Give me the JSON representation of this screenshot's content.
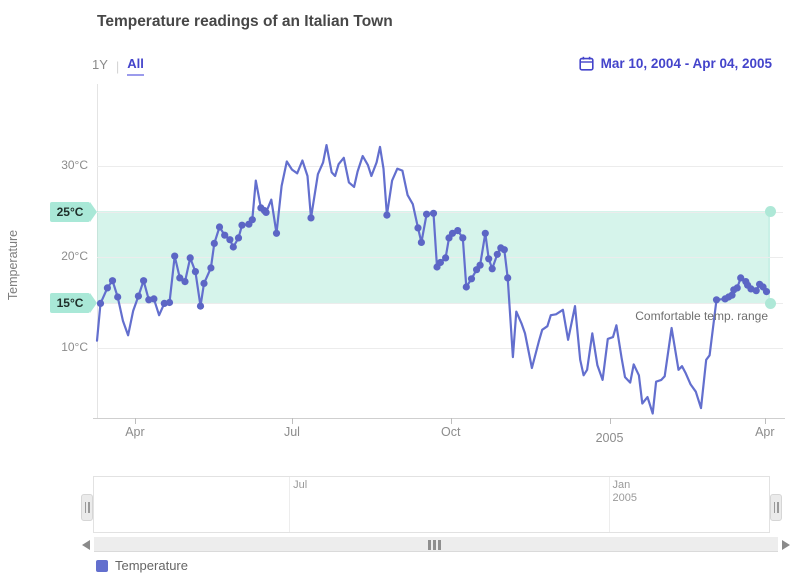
{
  "header": {
    "title": "Temperature readings of an Italian Town",
    "period_selector": {
      "options": [
        "1Y",
        "All"
      ],
      "selected": "All"
    },
    "date_range": "Mar 10, 2004 - Apr 04, 2005"
  },
  "y_axis": {
    "title": "Temperature",
    "ticks": [
      {
        "label": "30°C",
        "value": 30,
        "badge": false
      },
      {
        "label": "25°C",
        "value": 25,
        "badge": true
      },
      {
        "label": "20°C",
        "value": 20,
        "badge": false
      },
      {
        "label": "15°C",
        "value": 15,
        "badge": true
      },
      {
        "label": "10°C",
        "value": 10,
        "badge": false
      }
    ]
  },
  "x_axis": {
    "ticks": [
      {
        "label": "Apr",
        "day": 22,
        "low": false
      },
      {
        "label": "Jul",
        "day": 113,
        "low": false
      },
      {
        "label": "Oct",
        "day": 205,
        "low": false
      },
      {
        "label": "2005",
        "day": 297,
        "low": true
      },
      {
        "label": "Apr",
        "day": 387,
        "low": false
      }
    ]
  },
  "band": {
    "from": 15,
    "to": 25,
    "label": "Comfortable temp. range"
  },
  "navigator": {
    "labels": [
      {
        "label": "Jul",
        "day": 113
      },
      {
        "label": "Jan\n2005",
        "day": 297
      }
    ]
  },
  "legend": {
    "items": [
      {
        "label": "Temperature",
        "color": "#5d66c6"
      }
    ]
  },
  "colors": {
    "accent_line": "#636fce",
    "marker": "#5c66c5",
    "nav_line": "#8d96d8",
    "band_fill": "#9fe5d0",
    "badge_bg": "#a9e8d7",
    "accent_link": "#4444cb",
    "handle_teal": "#aee8d7"
  },
  "chart_data": {
    "type": "line",
    "title": "Temperature readings of an Italian Town",
    "xlabel": "",
    "ylabel": "Temperature",
    "x_start_date": "Mar 10, 2004",
    "x_end_date": "Apr 04, 2005",
    "x_unit": "days since Mar 10, 2004",
    "ylim": [
      2,
      37
    ],
    "x_domain_days": [
      0,
      390
    ],
    "grid": "horizontal",
    "legend_position": "bottom-left",
    "comfort_band": {
      "from": 15,
      "to": 25
    },
    "marker_visible_range": [
      14.5,
      25.6
    ],
    "marker_hidden_days": [
      239,
      356
    ],
    "series": [
      {
        "name": "Temperature",
        "points": [
          [
            0,
            10.8
          ],
          [
            2,
            14.9
          ],
          [
            6,
            16.6
          ],
          [
            9,
            17.4
          ],
          [
            12,
            15.6
          ],
          [
            15,
            13.0
          ],
          [
            18,
            11.4
          ],
          [
            21,
            14.1
          ],
          [
            24,
            15.7
          ],
          [
            27,
            17.4
          ],
          [
            30,
            15.3
          ],
          [
            33,
            15.4
          ],
          [
            36,
            13.6
          ],
          [
            39,
            14.9
          ],
          [
            42,
            15.0
          ],
          [
            45,
            20.1
          ],
          [
            48,
            17.7
          ],
          [
            51,
            17.3
          ],
          [
            54,
            19.9
          ],
          [
            57,
            18.4
          ],
          [
            60,
            14.6
          ],
          [
            62,
            17.1
          ],
          [
            66,
            18.8
          ],
          [
            68,
            21.5
          ],
          [
            71,
            23.3
          ],
          [
            74,
            22.4
          ],
          [
            77,
            21.9
          ],
          [
            79,
            21.1
          ],
          [
            82,
            22.1
          ],
          [
            84,
            23.5
          ],
          [
            88,
            23.6
          ],
          [
            90,
            24.1
          ],
          [
            92,
            28.4
          ],
          [
            95,
            25.4
          ],
          [
            97,
            25.1
          ],
          [
            98,
            24.9
          ],
          [
            101,
            26.3
          ],
          [
            104,
            22.6
          ],
          [
            107,
            27.8
          ],
          [
            110,
            30.5
          ],
          [
            113,
            29.6
          ],
          [
            116,
            29.2
          ],
          [
            119,
            30.6
          ],
          [
            122,
            28.9
          ],
          [
            124,
            24.3
          ],
          [
            128,
            29.1
          ],
          [
            131,
            30.4
          ],
          [
            133,
            32.3
          ],
          [
            136,
            29.3
          ],
          [
            138,
            28.9
          ],
          [
            140,
            30.2
          ],
          [
            143,
            30.9
          ],
          [
            146,
            28.2
          ],
          [
            149,
            27.7
          ],
          [
            151,
            29.4
          ],
          [
            154,
            31.1
          ],
          [
            157,
            30.1
          ],
          [
            159,
            28.9
          ],
          [
            162,
            30.4
          ],
          [
            164,
            32.1
          ],
          [
            166,
            29.7
          ],
          [
            168,
            24.6
          ],
          [
            171,
            28.4
          ],
          [
            174,
            29.7
          ],
          [
            177,
            29.5
          ],
          [
            180,
            26.8
          ],
          [
            183,
            25.8
          ],
          [
            186,
            23.2
          ],
          [
            188,
            21.6
          ],
          [
            191,
            24.7
          ],
          [
            195,
            24.8
          ],
          [
            197,
            18.9
          ],
          [
            199,
            19.4
          ],
          [
            202,
            19.9
          ],
          [
            204,
            22.1
          ],
          [
            206,
            22.6
          ],
          [
            209,
            22.9
          ],
          [
            212,
            22.1
          ],
          [
            214,
            16.7
          ],
          [
            217,
            17.6
          ],
          [
            220,
            18.6
          ],
          [
            222,
            19.1
          ],
          [
            225,
            22.6
          ],
          [
            227,
            19.8
          ],
          [
            229,
            18.7
          ],
          [
            232,
            20.3
          ],
          [
            234,
            21.0
          ],
          [
            236,
            20.8
          ],
          [
            238,
            17.7
          ],
          [
            241,
            9.0
          ],
          [
            243,
            14.0
          ],
          [
            246,
            12.7
          ],
          [
            248,
            11.6
          ],
          [
            252,
            7.8
          ],
          [
            256,
            10.7
          ],
          [
            258,
            12.0
          ],
          [
            261,
            12.4
          ],
          [
            263,
            13.6
          ],
          [
            266,
            13.7
          ],
          [
            270,
            14.2
          ],
          [
            273,
            10.9
          ],
          [
            277,
            14.6
          ],
          [
            280,
            8.7
          ],
          [
            282,
            7.0
          ],
          [
            284,
            7.6
          ],
          [
            287,
            11.6
          ],
          [
            290,
            8.1
          ],
          [
            293,
            6.5
          ],
          [
            296,
            11.0
          ],
          [
            299,
            11.2
          ],
          [
            301,
            12.5
          ],
          [
            304,
            8.9
          ],
          [
            306,
            6.8
          ],
          [
            309,
            6.2
          ],
          [
            311,
            8.2
          ],
          [
            314,
            7.0
          ],
          [
            316,
            3.9
          ],
          [
            319,
            4.6
          ],
          [
            322,
            2.8
          ],
          [
            324,
            6.3
          ],
          [
            327,
            6.5
          ],
          [
            329,
            6.9
          ],
          [
            333,
            12.2
          ],
          [
            337,
            7.6
          ],
          [
            339,
            8.0
          ],
          [
            341,
            7.3
          ],
          [
            344,
            6.0
          ],
          [
            347,
            5.2
          ],
          [
            350,
            3.4
          ],
          [
            353,
            8.7
          ],
          [
            355,
            9.2
          ],
          [
            359,
            15.3
          ],
          [
            364,
            15.4
          ],
          [
            366,
            15.6
          ],
          [
            368,
            15.8
          ],
          [
            369,
            16.4
          ],
          [
            371,
            16.6
          ],
          [
            373,
            17.7
          ],
          [
            376,
            17.3
          ],
          [
            377,
            16.9
          ],
          [
            379,
            16.5
          ],
          [
            382,
            16.3
          ],
          [
            384,
            17.0
          ],
          [
            386,
            16.7
          ],
          [
            388,
            16.2
          ]
        ]
      }
    ]
  }
}
